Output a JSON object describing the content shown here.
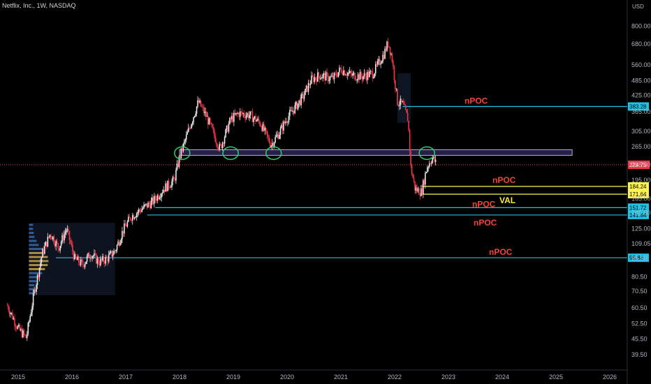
{
  "header": {
    "symbol_line": "Netflix, Inc., 1W, NASDAQ",
    "currency": "USD"
  },
  "chart_data": {
    "type": "candlestick",
    "title": "Netflix, Inc., 1W, NASDAQ",
    "scale": "log",
    "ylim": [
      37,
      850
    ],
    "x_ticks": [
      "2015",
      "2016",
      "2017",
      "2018",
      "2019",
      "2020",
      "2021",
      "2022",
      "2023",
      "2024",
      "2025",
      "2026"
    ],
    "y_ticks": [
      39.5,
      45.5,
      52.5,
      60.5,
      70.5,
      80.5,
      95.5,
      109.05,
      125.0,
      145.0,
      165.0,
      195.0,
      225.0,
      265.0,
      305.0,
      365.0,
      425.0,
      485.0,
      560.0,
      680.0,
      800.0
    ],
    "y_tick_labels": [
      "39.50",
      "45.50",
      "52.50",
      "60.50",
      "70.50",
      "80.50",
      "95.50",
      "109.05",
      "125.00",
      "145.00",
      "165.00",
      "195.00",
      "225.00",
      "265.00",
      "305.00",
      "365.00",
      "425.00",
      "485.00",
      "560.00",
      "680.00",
      "800.00"
    ],
    "price_path": [
      [
        2014.8,
        62
      ],
      [
        2015.0,
        50
      ],
      [
        2015.15,
        46
      ],
      [
        2015.3,
        70
      ],
      [
        2015.45,
        100
      ],
      [
        2015.6,
        120
      ],
      [
        2015.75,
        105
      ],
      [
        2015.9,
        125
      ],
      [
        2016.05,
        95
      ],
      [
        2016.2,
        90
      ],
      [
        2016.35,
        100
      ],
      [
        2016.5,
        92
      ],
      [
        2016.65,
        95
      ],
      [
        2016.8,
        102
      ],
      [
        2016.95,
        123
      ],
      [
        2017.1,
        140
      ],
      [
        2017.3,
        150
      ],
      [
        2017.5,
        160
      ],
      [
        2017.7,
        180
      ],
      [
        2017.9,
        195
      ],
      [
        2018.0,
        240
      ],
      [
        2018.15,
        300
      ],
      [
        2018.35,
        400
      ],
      [
        2018.5,
        350
      ],
      [
        2018.75,
        260
      ],
      [
        2018.95,
        340
      ],
      [
        2019.1,
        360
      ],
      [
        2019.3,
        355
      ],
      [
        2019.5,
        330
      ],
      [
        2019.7,
        270
      ],
      [
        2019.85,
        300
      ],
      [
        2020.0,
        345
      ],
      [
        2020.15,
        380
      ],
      [
        2020.3,
        420
      ],
      [
        2020.45,
        490
      ],
      [
        2020.6,
        510
      ],
      [
        2020.85,
        495
      ],
      [
        2021.0,
        540
      ],
      [
        2021.2,
        510
      ],
      [
        2021.4,
        505
      ],
      [
        2021.6,
        520
      ],
      [
        2021.8,
        620
      ],
      [
        2021.88,
        690
      ],
      [
        2021.95,
        600
      ],
      [
        2022.05,
        400
      ],
      [
        2022.15,
        390
      ],
      [
        2022.25,
        340
      ],
      [
        2022.3,
        220
      ],
      [
        2022.38,
        180
      ],
      [
        2022.5,
        175
      ],
      [
        2022.6,
        220
      ],
      [
        2022.7,
        240
      ],
      [
        2022.78,
        225
      ]
    ],
    "last_price": 224.75,
    "last_price_label": "224.75",
    "levels": [
      {
        "price": 383.28,
        "label": "383.28",
        "annotation": "nPOC",
        "x_start": 2022.15,
        "color": "#1ec3e6"
      },
      {
        "price": 184.24,
        "label": "184.24",
        "annotation": "nPOC",
        "x_start": 2022.5,
        "color": "#fff44f"
      },
      {
        "price": 171.64,
        "label": "171.64",
        "annotation": "VAL",
        "x_start": 2022.5,
        "color": "#fff44f"
      },
      {
        "price": 151.72,
        "label": "151.72",
        "annotation": "nPOC",
        "x_start": 2017.55,
        "color": "#1ec3e6"
      },
      {
        "price": 141.84,
        "label": "141.84",
        "annotation": "nPOC",
        "x_start": 2017.4,
        "color": "#1ec3e6"
      },
      {
        "price": 95.86,
        "label": "95.86",
        "annotation": "nPOC",
        "x_start": 2015.7,
        "color": "#1ec3e6"
      }
    ],
    "zone": {
      "x_start": 2018.0,
      "x_end": 2025.3,
      "y_low": 245,
      "y_high": 258
    },
    "circles": [
      2018.05,
      2018.95,
      2019.75,
      2022.6
    ],
    "volume_profile_box": {
      "x_start": 2015.2,
      "x_end": 2016.8,
      "y_low": 68,
      "y_high": 132
    },
    "dark_box": {
      "x_start": 2022.05,
      "x_end": 2022.3,
      "y_low": 330,
      "y_high": 520
    }
  }
}
